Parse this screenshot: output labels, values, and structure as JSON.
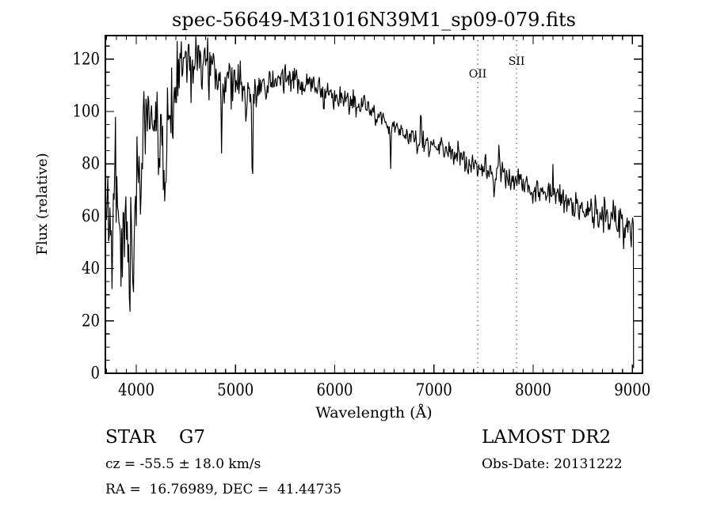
{
  "title": "spec-56649-M31016N39M1_sp09-079.fits",
  "annotations": {
    "class_label": "STAR    G7",
    "survey": "LAMOST DR2",
    "cz": "cz = -55.5 ± 18.0 km/s",
    "obs_date": "Obs-Date: 20131222",
    "radec": "RA =  16.76989, DEC =  41.44735"
  },
  "colors": {
    "spectrum": "#000000",
    "marker_line": "#993333",
    "frame": "#000000",
    "text": "#000000",
    "background": "#ffffff"
  },
  "chart_data": {
    "type": "line",
    "title": "spec-56649-M31016N39M1_sp09-079.fits",
    "xlabel": "Wavelength (Å)",
    "ylabel": "Flux (relative)",
    "xlim": [
      3689,
      9102
    ],
    "ylim": [
      0,
      129
    ],
    "x_ticks": [
      4000,
      5000,
      6000,
      7000,
      8000,
      9000
    ],
    "y_ticks": [
      0,
      20,
      40,
      60,
      80,
      100,
      120
    ],
    "x_minor_step": 100,
    "y_minor_step": 5,
    "grid": false,
    "vlines": [
      {
        "label": "OII",
        "wavelength": 7442,
        "label_y": 98
      },
      {
        "label": "SII",
        "wavelength": 7833,
        "label_y": 82
      }
    ],
    "series": [
      {
        "name": "spectrum",
        "domain": [
          3700,
          9010
        ],
        "samples": 760,
        "seed": 11,
        "clip_max": 128.6,
        "end_drop": [
          9012,
          2
        ],
        "envelope_wavelength": [
          3700,
          3730,
          3760,
          3790,
          3820,
          3850,
          3880,
          3910,
          3940,
          3970,
          4000,
          4030,
          4060,
          4090,
          4120,
          4160,
          4200,
          4240,
          4280,
          4320,
          4360,
          4400,
          4440,
          4480,
          4520,
          4560,
          4600,
          4650,
          4700,
          4750,
          4800,
          4850,
          4900,
          4950,
          5000,
          5050,
          5100,
          5150,
          5200,
          5250,
          5300,
          5350,
          5400,
          5450,
          5500,
          5600,
          5700,
          5800,
          5900,
          6000,
          6100,
          6200,
          6300,
          6400,
          6500,
          6600,
          6700,
          6800,
          6900,
          7000,
          7100,
          7200,
          7300,
          7400,
          7500,
          7600,
          7650,
          7700,
          7800,
          7900,
          8000,
          8100,
          8200,
          8300,
          8400,
          8500,
          8600,
          8700,
          8800,
          8900,
          9000,
          9010
        ],
        "envelope_flux": [
          58,
          62,
          60,
          64,
          58,
          54,
          52,
          50,
          50,
          54,
          66,
          78,
          88,
          96,
          100,
          98,
          95,
          90,
          87,
          95,
          105,
          112,
          118,
          121,
          122,
          123,
          122,
          122,
          120,
          116,
          113,
          111,
          111,
          113,
          112,
          111,
          108,
          105,
          106,
          109,
          110,
          111,
          112,
          113,
          112,
          112,
          111,
          110,
          108,
          106,
          105,
          103,
          101,
          99,
          96,
          94,
          92,
          90,
          88,
          86,
          85,
          83,
          81,
          80,
          78,
          76,
          77,
          76,
          74,
          73,
          71,
          69,
          68,
          66,
          64,
          63,
          62,
          61,
          59,
          57,
          55,
          54
        ],
        "noise_wavelength": [
          3700,
          3900,
          3980,
          4050,
          4150,
          4300,
          4450,
          4700,
          5000,
          5200,
          5500,
          5900,
          6300,
          6600,
          7000,
          7300,
          7500,
          7700,
          7900,
          8200,
          8500,
          8800,
          9010
        ],
        "noise_sigma": [
          12,
          12,
          10,
          8,
          7,
          7,
          5.5,
          4.5,
          4,
          3.2,
          2.7,
          2.4,
          2.2,
          1.9,
          1.9,
          2.1,
          2.6,
          3,
          2.4,
          2.6,
          2.8,
          3.4,
          4
        ],
        "features": [
          [
            3790,
            5,
            38
          ],
          [
            3862,
            5,
            -18
          ],
          [
            3935,
            6,
            -25
          ],
          [
            3969,
            6,
            -23
          ],
          [
            4045,
            5,
            -46
          ],
          [
            4102,
            5,
            12
          ],
          [
            4227,
            6,
            -14
          ],
          [
            4290,
            12,
            -20
          ],
          [
            4367,
            5,
            -26
          ],
          [
            4550,
            6,
            -16
          ],
          [
            4663,
            5,
            -22
          ],
          [
            4731,
            5,
            -26
          ],
          [
            4861,
            6,
            -26
          ],
          [
            5103,
            6,
            -18
          ],
          [
            5170,
            7,
            -37
          ],
          [
            5577,
            5,
            6
          ],
          [
            5890,
            7,
            -8
          ],
          [
            6150,
            6,
            -8
          ],
          [
            6300,
            5,
            9
          ],
          [
            6563,
            6,
            -18
          ],
          [
            6830,
            7,
            -6
          ],
          [
            6868,
            6,
            12
          ],
          [
            7186,
            5,
            5
          ],
          [
            7245,
            5,
            4
          ],
          [
            7520,
            6,
            5
          ],
          [
            7605,
            7,
            -7
          ],
          [
            7655,
            6,
            8
          ],
          [
            7692,
            5,
            6
          ],
          [
            7725,
            5,
            -6
          ],
          [
            8200,
            6,
            7
          ],
          [
            8630,
            7,
            9
          ],
          [
            8760,
            8,
            -8
          ],
          [
            8827,
            5,
            6
          ],
          [
            8915,
            6,
            -7
          ]
        ]
      }
    ]
  }
}
